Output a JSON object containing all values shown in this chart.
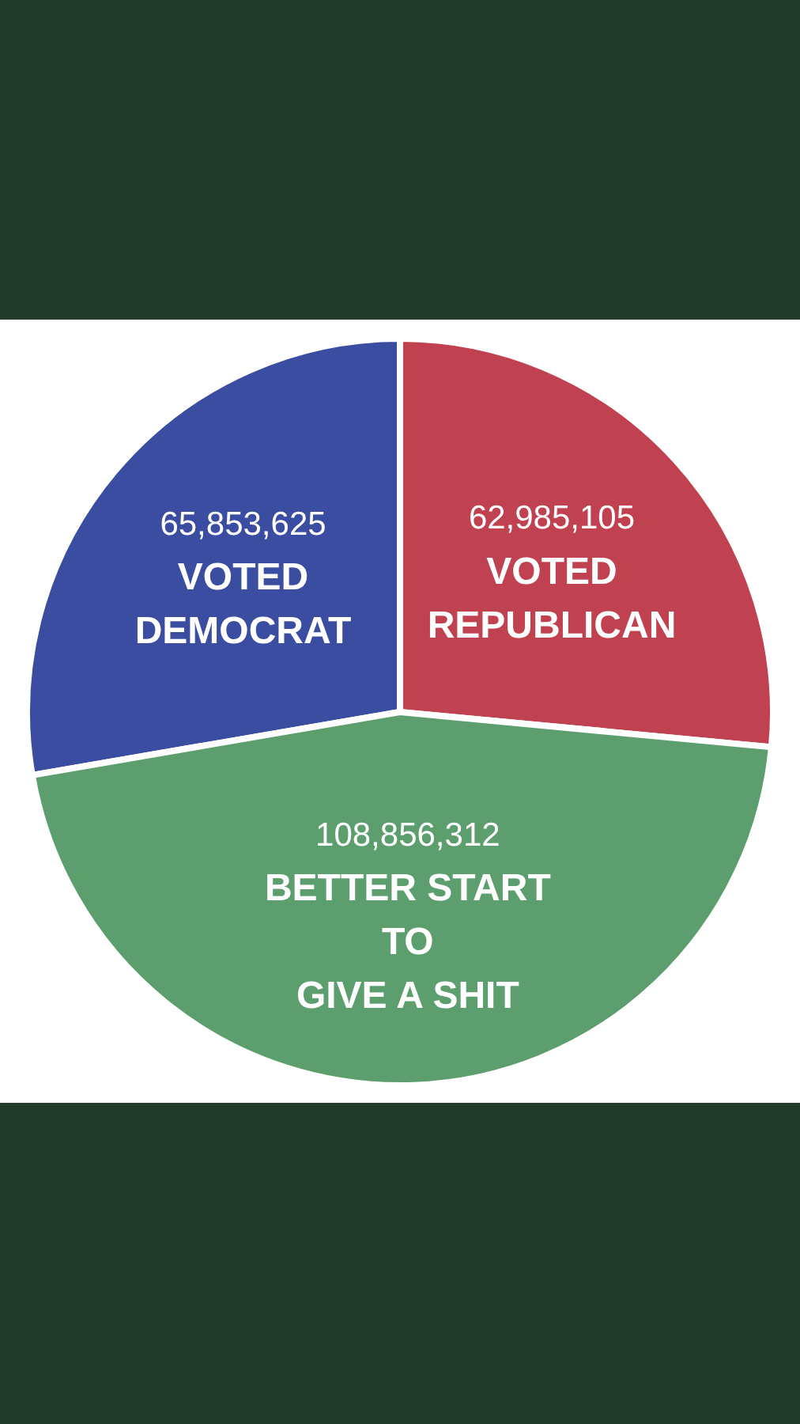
{
  "chart_data": {
    "type": "pie",
    "categories": [
      "VOTED\nDEMOCRAT",
      "VOTED\nREPUBLICAN",
      "BETTER START\nTO\nGIVE A SHIT"
    ],
    "values": [
      65853625,
      62985105,
      108856312
    ],
    "colors": [
      "#3b4da0",
      "#c0414f",
      "#5c9e6d"
    ],
    "value_labels": [
      "65,853,625",
      "62,985,105",
      "108,856,312"
    ]
  }
}
